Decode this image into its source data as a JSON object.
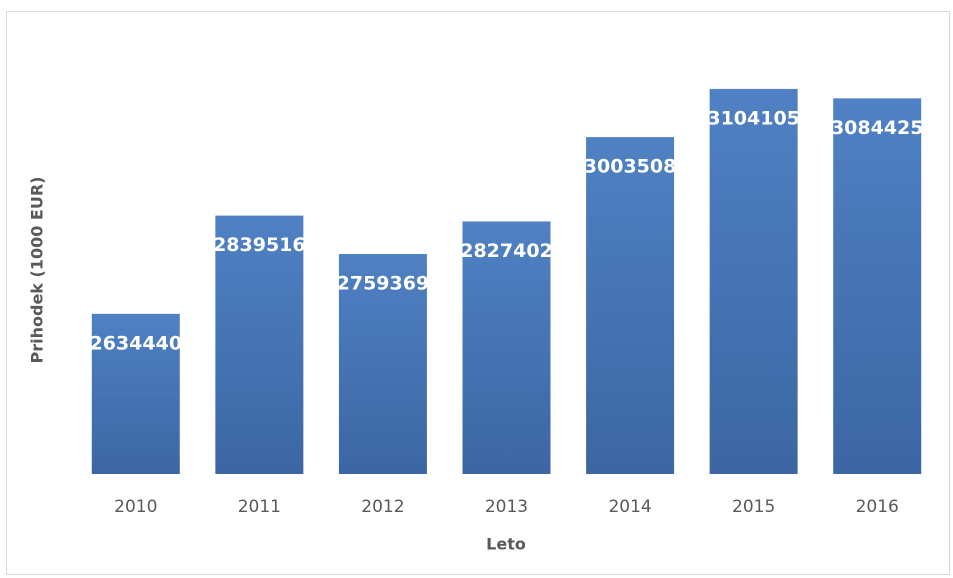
{
  "chart_data": {
    "type": "bar",
    "x_label": "Leto",
    "y_label": "Prihodek (1000 EUR)",
    "categories": [
      "2010",
      "2011",
      "2012",
      "2013",
      "2014",
      "2015",
      "2016"
    ],
    "values": [
      2634440,
      2839516,
      2759369,
      2827402,
      3003508,
      3104105,
      3084425
    ],
    "color": "#4a7ebb",
    "ylim": [
      2300000,
      3200000
    ]
  }
}
